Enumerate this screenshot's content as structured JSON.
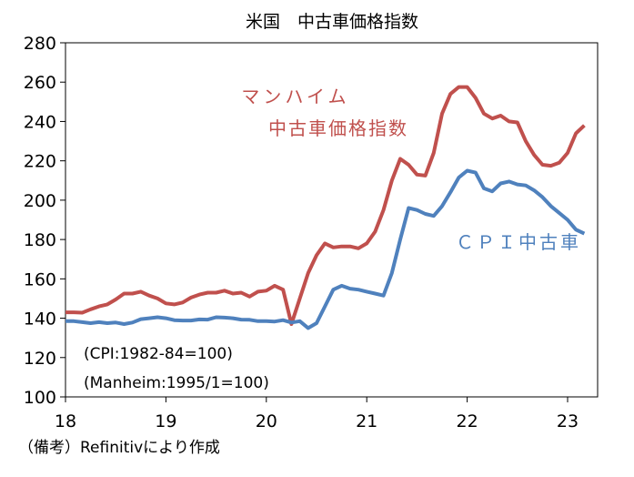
{
  "chart_data": {
    "type": "line",
    "title": "米国　中古車価格指数",
    "xlabel": "",
    "ylabel": "",
    "ylim": [
      100,
      280
    ],
    "yticks": [
      100,
      120,
      140,
      160,
      180,
      200,
      220,
      240,
      260,
      280
    ],
    "xticks": [
      "18",
      "19",
      "20",
      "21",
      "22",
      "23"
    ],
    "x_start": "2018-01",
    "x_frequency": "monthly",
    "grid": false,
    "series": [
      {
        "name": "マンハイム中古車価格指数",
        "label_lines": [
          "マンハイム",
          "中古車価格指数"
        ],
        "color": "#c0504d",
        "values": [
          143,
          143,
          142.8,
          144.5,
          146,
          147,
          149.5,
          152.5,
          152.5,
          153.5,
          151.5,
          150,
          147.5,
          147,
          148,
          150.5,
          152,
          153,
          153,
          154,
          152.5,
          153,
          151,
          153.5,
          154,
          156.5,
          154.5,
          137,
          150,
          163,
          172,
          178,
          176,
          176.5,
          176.5,
          175.5,
          178,
          184,
          195,
          210,
          221,
          218,
          213,
          212.5,
          224,
          244,
          254,
          257.5,
          257.5,
          252,
          244,
          241.5,
          243,
          240,
          239.5,
          230,
          223,
          218,
          217.5,
          219,
          224,
          234,
          238
        ]
      },
      {
        "name": "ＣＰＩ中古車",
        "label_lines": [
          "ＣＰＩ中古車"
        ],
        "color": "#4f81bd",
        "values": [
          138.5,
          138.5,
          138,
          137.5,
          138,
          137.5,
          137.8,
          137,
          137.8,
          139.5,
          140,
          140.5,
          140,
          139,
          138.8,
          138.8,
          139.4,
          139.3,
          140.5,
          140.3,
          140,
          139.3,
          139.2,
          138.5,
          138.5,
          138.3,
          139,
          137.8,
          138.5,
          135,
          137.5,
          146,
          154.5,
          156.5,
          155,
          154.5,
          153.5,
          152.5,
          151.5,
          163,
          180,
          196,
          195,
          193,
          192,
          197,
          204,
          211.5,
          215,
          214,
          206,
          204.5,
          208.5,
          209.5,
          208,
          207.5,
          205,
          201.5,
          197,
          193.5,
          190,
          185,
          183
        ]
      }
    ],
    "annotations": [
      "(CPI:1982-84=100)",
      "(Manheim:1995/1=100)"
    ],
    "footnote": "（備考）Refinitivにより作成"
  }
}
